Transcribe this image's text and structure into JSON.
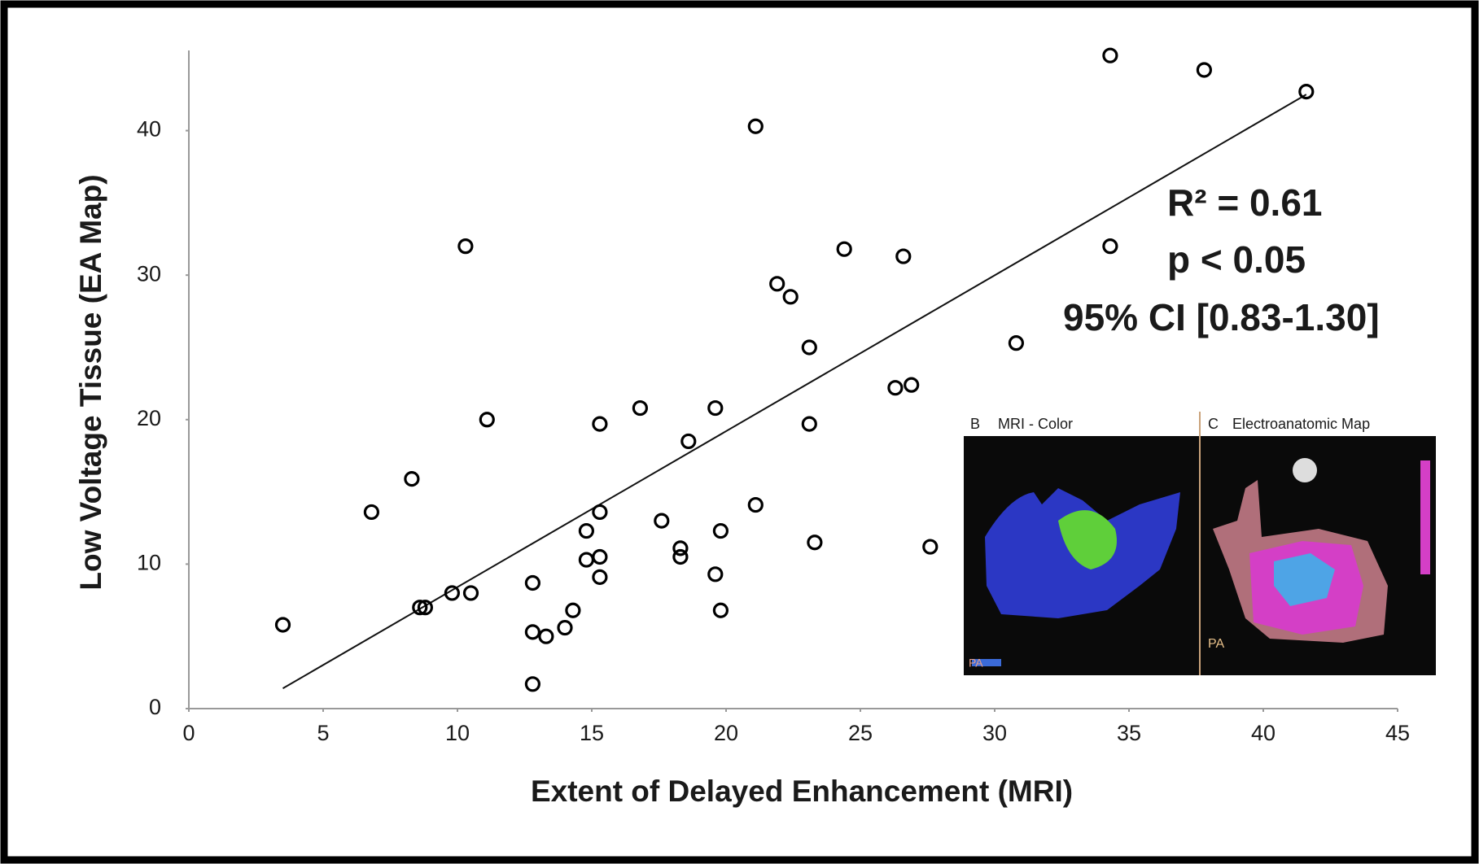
{
  "chart_data": {
    "type": "scatter",
    "xlabel": "Extent of Delayed Enhancement (MRI)",
    "ylabel": "Low Voltage Tissue (EA Map)",
    "x": [
      3.5,
      6.8,
      8.3,
      8.6,
      8.8,
      9.8,
      10.5,
      10.3,
      11.1,
      12.8,
      12.8,
      13.3,
      12.8,
      14.0,
      14.3,
      14.8,
      14.8,
      15.3,
      15.3,
      15.3,
      15.3,
      16.8,
      17.6,
      18.3,
      18.3,
      18.6,
      19.6,
      19.6,
      19.8,
      19.8,
      21.1,
      21.1,
      21.9,
      22.4,
      23.1,
      23.1,
      23.3,
      24.4,
      26.3,
      26.9,
      26.6,
      27.6,
      30.8,
      34.3,
      34.3,
      37.8,
      41.6
    ],
    "values": [
      5.8,
      13.6,
      15.9,
      7.0,
      7.0,
      8.0,
      8.0,
      32.0,
      20.0,
      8.7,
      5.3,
      5.0,
      1.7,
      5.6,
      6.8,
      12.3,
      10.3,
      10.5,
      9.1,
      13.6,
      19.7,
      20.8,
      13.0,
      11.1,
      10.5,
      18.5,
      20.8,
      9.3,
      12.3,
      6.8,
      40.3,
      14.1,
      29.4,
      28.5,
      25.0,
      19.7,
      11.5,
      31.8,
      22.2,
      22.4,
      31.3,
      11.2,
      25.3,
      45.2,
      32.0,
      44.2,
      42.7
    ],
    "color": "#000000",
    "trendline": {
      "x": [
        3.5,
        41.6
      ],
      "y": [
        1.4,
        42.5
      ]
    },
    "xlim": [
      0,
      45
    ],
    "xticks": [
      0,
      5,
      10,
      15,
      20,
      25,
      30,
      35,
      40,
      45
    ],
    "ylim": [
      0,
      46
    ],
    "yticks": [
      0,
      10,
      20,
      30,
      40
    ],
    "annotations": [
      "R² = 0.61",
      "p < 0.05",
      "95% CI [0.83-1.30]"
    ]
  },
  "inset": {
    "panels": [
      {
        "letter": "B",
        "title": "MRI - Color",
        "label": "PA"
      },
      {
        "letter": "C",
        "title": "Electroanatomic Map",
        "label": "PA"
      }
    ]
  }
}
